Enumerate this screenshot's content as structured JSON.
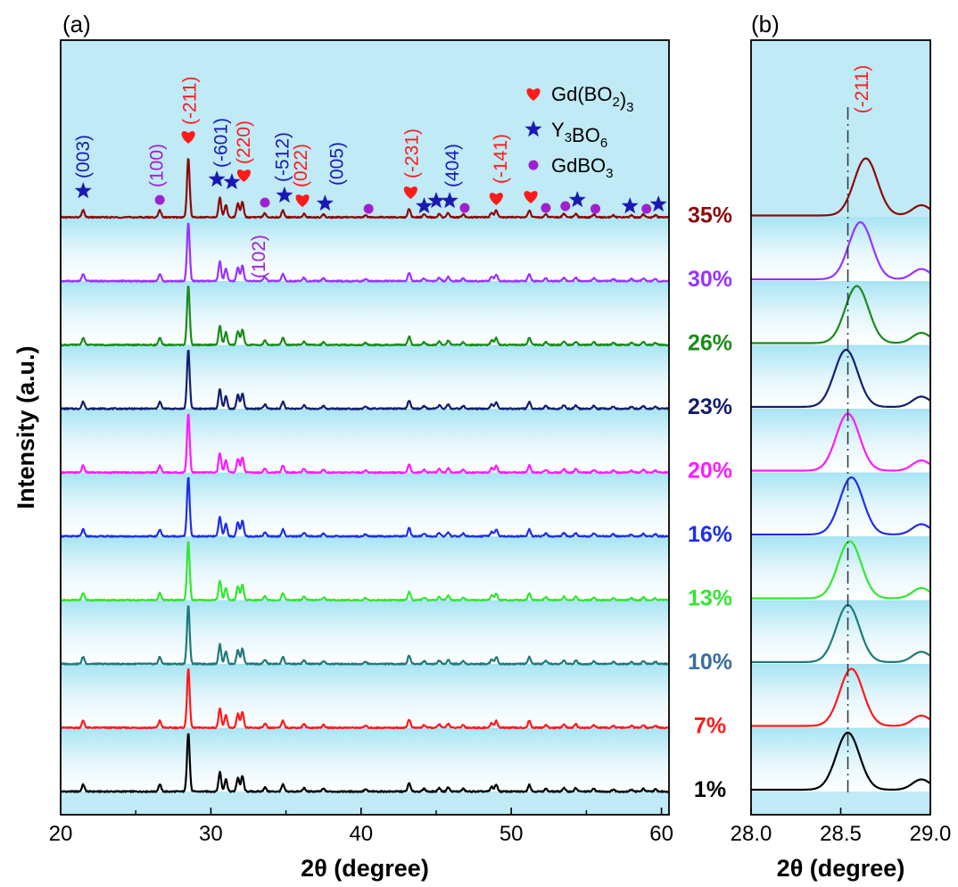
{
  "chart_data": [
    {
      "panel_label": "(a)",
      "type": "line",
      "xlabel": "2θ (degree)",
      "ylabel": "Intensity (a.u.)",
      "xlim": [
        20,
        60.5
      ],
      "xticks": [
        20,
        30,
        40,
        50,
        60
      ],
      "yticks_shown": false,
      "background": "light blue gradient bands",
      "series": [
        {
          "name": "1%",
          "color": "#000000"
        },
        {
          "name": "7%",
          "color": "#ff1a1a"
        },
        {
          "name": "10%",
          "color": "#1f7a7a"
        },
        {
          "name": "13%",
          "color": "#33e633"
        },
        {
          "name": "16%",
          "color": "#1f2fe6"
        },
        {
          "name": "20%",
          "color": "#ff1aff"
        },
        {
          "name": "23%",
          "color": "#141e6e"
        },
        {
          "name": "26%",
          "color": "#1a8c1a"
        },
        {
          "name": "30%",
          "color": "#9933ff"
        },
        {
          "name": "35%",
          "color": "#8b0a0a"
        }
      ],
      "label_colors": {
        "1%": "#000000",
        "7%": "#ff1a1a",
        "10%": "#3a6e9a",
        "13%": "#33e633",
        "16%": "#1f2fe6",
        "20%": "#ff1aff",
        "23%": "#141e6e",
        "26%": "#1a8c1a",
        "30%": "#9933ff",
        "35%": "#8b0a0a"
      },
      "peaks": [
        {
          "x": 21.5,
          "h": 0.1
        },
        {
          "x": 26.6,
          "h": 0.1
        },
        {
          "x": 28.5,
          "h": 0.85
        },
        {
          "x": 30.6,
          "h": 0.28
        },
        {
          "x": 31.0,
          "h": 0.18
        },
        {
          "x": 31.8,
          "h": 0.2
        },
        {
          "x": 32.1,
          "h": 0.22
        },
        {
          "x": 33.6,
          "h": 0.06
        },
        {
          "x": 34.8,
          "h": 0.1
        },
        {
          "x": 36.2,
          "h": 0.05
        },
        {
          "x": 37.5,
          "h": 0.04
        },
        {
          "x": 40.3,
          "h": 0.03
        },
        {
          "x": 43.2,
          "h": 0.12
        },
        {
          "x": 44.2,
          "h": 0.04
        },
        {
          "x": 45.2,
          "h": 0.05
        },
        {
          "x": 45.8,
          "h": 0.06
        },
        {
          "x": 46.8,
          "h": 0.04
        },
        {
          "x": 48.7,
          "h": 0.07
        },
        {
          "x": 49.0,
          "h": 0.1
        },
        {
          "x": 51.2,
          "h": 0.1
        },
        {
          "x": 52.3,
          "h": 0.04
        },
        {
          "x": 53.5,
          "h": 0.05
        },
        {
          "x": 54.3,
          "h": 0.05
        },
        {
          "x": 55.5,
          "h": 0.04
        },
        {
          "x": 56.8,
          "h": 0.03
        },
        {
          "x": 58.0,
          "h": 0.03
        },
        {
          "x": 58.8,
          "h": 0.04
        },
        {
          "x": 59.6,
          "h": 0.03
        }
      ],
      "legend": [
        {
          "label": "Gd(BO",
          "sub": "2",
          "tail": ")",
          "sub2": "3",
          "marker": "heart",
          "color": "#ff1a1a"
        },
        {
          "label": "Y",
          "sub": "3",
          "tail": "BO",
          "sub2": "6",
          "marker": "star",
          "color": "#1a1ab3"
        },
        {
          "label": "GdBO",
          "sub": "3",
          "tail": "",
          "sub2": "",
          "marker": "dot",
          "color": "#a020d0"
        }
      ],
      "markers": [
        {
          "x": 21.5,
          "type": "star"
        },
        {
          "x": 26.6,
          "type": "dot"
        },
        {
          "x": 28.5,
          "type": "heart"
        },
        {
          "x": 30.4,
          "type": "star"
        },
        {
          "x": 31.4,
          "type": "star"
        },
        {
          "x": 32.2,
          "type": "heart"
        },
        {
          "x": 33.6,
          "type": "dot"
        },
        {
          "x": 34.9,
          "type": "star"
        },
        {
          "x": 36.1,
          "type": "heart"
        },
        {
          "x": 37.6,
          "type": "star"
        },
        {
          "x": 40.5,
          "type": "dot"
        },
        {
          "x": 43.3,
          "type": "heart"
        },
        {
          "x": 44.2,
          "type": "star"
        },
        {
          "x": 45.0,
          "type": "star"
        },
        {
          "x": 45.9,
          "type": "star"
        },
        {
          "x": 46.9,
          "type": "dot"
        },
        {
          "x": 49.0,
          "type": "heart"
        },
        {
          "x": 51.3,
          "type": "heart"
        },
        {
          "x": 52.3,
          "type": "dot"
        },
        {
          "x": 53.6,
          "type": "dot"
        },
        {
          "x": 54.4,
          "type": "star"
        },
        {
          "x": 55.6,
          "type": "dot"
        },
        {
          "x": 57.9,
          "type": "star"
        },
        {
          "x": 59.0,
          "type": "dot"
        },
        {
          "x": 59.8,
          "type": "star"
        }
      ],
      "annotations": [
        {
          "text": "(003)",
          "x": 21.5,
          "color": "#1a1ab3"
        },
        {
          "text": "(100)",
          "x": 26.4,
          "color": "#a020d0"
        },
        {
          "text": "(-211)",
          "x": 28.6,
          "color": "#ff1a1a"
        },
        {
          "text": "(-601)",
          "x": 30.7,
          "color": "#1a1ab3"
        },
        {
          "text": "(220)",
          "x": 32.2,
          "color": "#ff1a1a"
        },
        {
          "text": "(-512)",
          "x": 34.8,
          "color": "#1a1ab3"
        },
        {
          "text": "(022)",
          "x": 36.0,
          "color": "#ff1a1a"
        },
        {
          "text": "(005)",
          "x": 38.4,
          "color": "#1a1ab3"
        },
        {
          "text": "(102)",
          "x": 33.2,
          "color": "#a020d0",
          "below": true
        },
        {
          "text": "(-231)",
          "x": 43.4,
          "color": "#ff1a1a"
        },
        {
          "text": "(404)",
          "x": 46.1,
          "color": "#1a1ab3"
        },
        {
          "text": "(-141)",
          "x": 49.3,
          "color": "#ff1a1a"
        }
      ]
    },
    {
      "panel_label": "(b)",
      "type": "line",
      "xlabel": "2θ (degree)",
      "xlim": [
        28.0,
        29.0
      ],
      "xticks": [
        "28.0",
        "28.5",
        "29.0"
      ],
      "annotation": {
        "text": "(-211)",
        "color": "#ff1a1a"
      },
      "reference_line_x": 28.54,
      "peak_centers": [
        28.54,
        28.56,
        28.54,
        28.55,
        28.56,
        28.54,
        28.53,
        28.59,
        28.61,
        28.64
      ]
    }
  ]
}
